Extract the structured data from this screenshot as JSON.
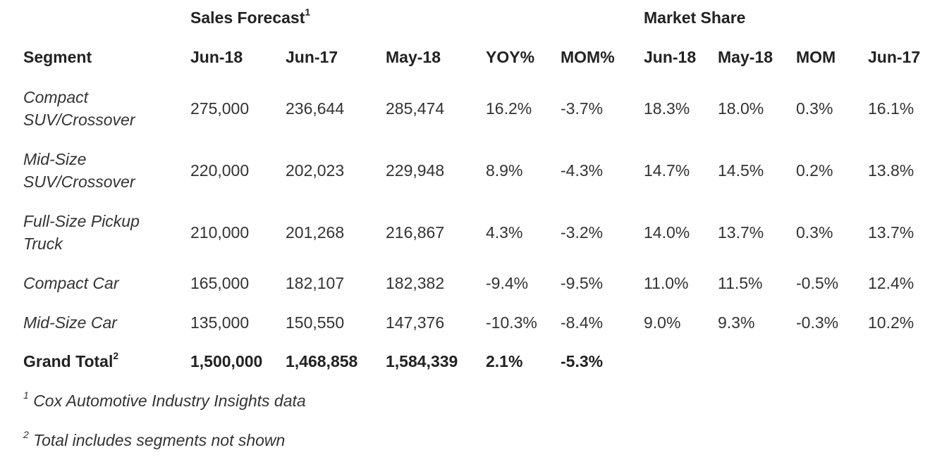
{
  "group_headers": {
    "sales_forecast": "Sales Forecast",
    "sales_forecast_note": "1",
    "market_share": "Market Share"
  },
  "columns": [
    "Segment",
    "Jun-18",
    "Jun-17",
    "May-18",
    "YOY%",
    "MOM%",
    "Jun-18",
    "May-18",
    "MOM",
    "Jun-17"
  ],
  "rows": [
    {
      "segment_line1": "Compact",
      "segment_line2": "SUV/Crossover",
      "values": [
        "275,000",
        "236,644",
        "285,474",
        "16.2%",
        "-3.7%",
        "18.3%",
        "18.0%",
        "0.3%",
        "16.1%"
      ]
    },
    {
      "segment_line1": "Mid-Size",
      "segment_line2": "SUV/Crossover",
      "values": [
        "220,000",
        "202,023",
        "229,948",
        "8.9%",
        "-4.3%",
        "14.7%",
        "14.5%",
        "0.2%",
        "13.8%"
      ]
    },
    {
      "segment_line1": "Full-Size Pickup",
      "segment_line2": "Truck",
      "values": [
        "210,000",
        "201,268",
        "216,867",
        "4.3%",
        "-3.2%",
        "14.0%",
        "13.7%",
        "0.3%",
        "13.7%"
      ]
    },
    {
      "segment_line1": "Compact Car",
      "segment_line2": "",
      "values": [
        "165,000",
        "182,107",
        "182,382",
        "-9.4%",
        "-9.5%",
        "11.0%",
        "11.5%",
        "-0.5%",
        "12.4%"
      ]
    },
    {
      "segment_line1": "Mid-Size Car",
      "segment_line2": "",
      "values": [
        "135,000",
        "150,550",
        "147,376",
        "-10.3%",
        "-8.4%",
        "9.0%",
        "9.3%",
        "-0.3%",
        "10.2%"
      ]
    }
  ],
  "grand_total": {
    "label": "Grand Total",
    "note": "2",
    "values": [
      "1,500,000",
      "1,468,858",
      "1,584,339",
      "2.1%",
      "-5.3%"
    ]
  },
  "footnotes": [
    {
      "mark": "1",
      "text": "Cox Automotive Industry Insights data"
    },
    {
      "mark": "2",
      "text": "Total includes segments not shown"
    }
  ]
}
